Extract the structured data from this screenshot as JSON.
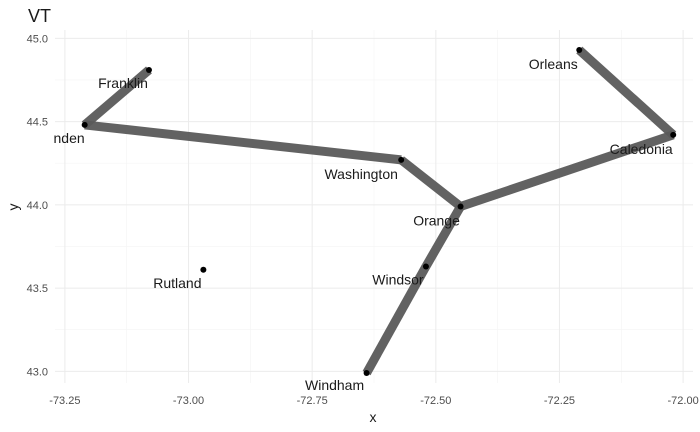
{
  "chart_data": {
    "type": "network",
    "title": "VT",
    "xlabel": "x",
    "ylabel": "y",
    "xlim": [
      -73.27,
      -71.98
    ],
    "ylim": [
      42.93,
      45.05
    ],
    "xticks": [
      -73.25,
      -73.0,
      -72.75,
      -72.5,
      -72.25,
      -72.0
    ],
    "xtick_labels": [
      "-73.25",
      "-73.00",
      "-72.75",
      "-72.50",
      "-72.25",
      "-72.00"
    ],
    "yticks": [
      43.0,
      43.5,
      44.0,
      44.5,
      45.0
    ],
    "ytick_labels": [
      "43.0",
      "43.5",
      "44.0",
      "44.5",
      "45.0"
    ],
    "grid": true,
    "nodes": [
      {
        "id": "addison",
        "name": "nden",
        "x": -73.21,
        "y": 44.48
      },
      {
        "id": "franklin",
        "name": "Franklin",
        "x": -73.08,
        "y": 44.81
      },
      {
        "id": "washington",
        "name": "Washington",
        "x": -72.57,
        "y": 44.27
      },
      {
        "id": "orange",
        "name": "Orange",
        "x": -72.45,
        "y": 43.99
      },
      {
        "id": "orleans",
        "name": "Orleans",
        "x": -72.21,
        "y": 44.93
      },
      {
        "id": "caledonia",
        "name": "Caledonia",
        "x": -72.02,
        "y": 44.42
      },
      {
        "id": "windsor",
        "name": "Windsor",
        "x": -72.52,
        "y": 43.63
      },
      {
        "id": "windham",
        "name": "Windham",
        "x": -72.64,
        "y": 42.99
      },
      {
        "id": "rutland",
        "name": "Rutland",
        "x": -72.97,
        "y": 43.61
      }
    ],
    "edges": [
      [
        "franklin",
        "addison"
      ],
      [
        "addison",
        "washington"
      ],
      [
        "washington",
        "orange"
      ],
      [
        "orange",
        "caledonia"
      ],
      [
        "caledonia",
        "orleans"
      ],
      [
        "orange",
        "windsor"
      ],
      [
        "windsor",
        "windham"
      ]
    ]
  }
}
